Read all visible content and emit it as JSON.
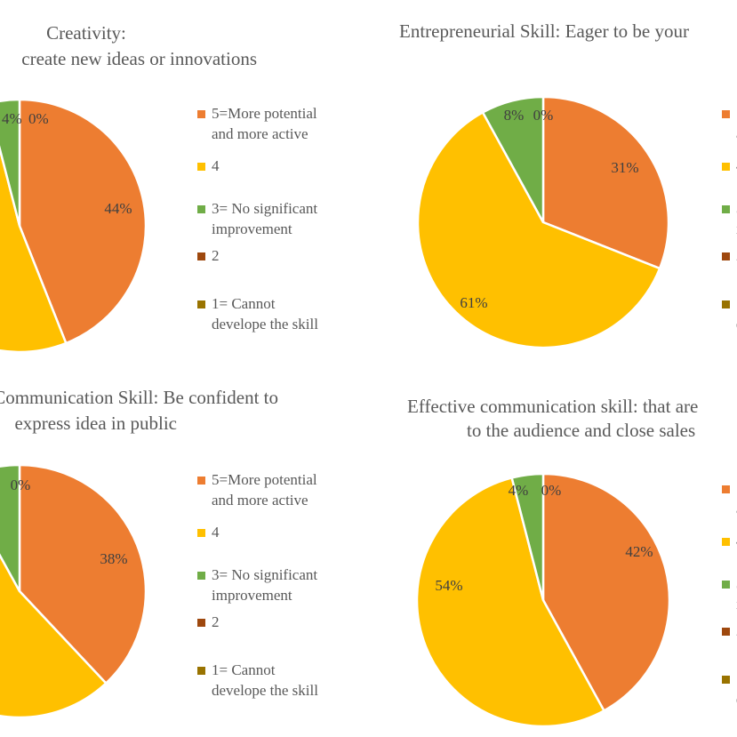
{
  "colors": {
    "5": "#ED7D31",
    "4": "#FFC000",
    "3": "#70AD47",
    "2": "#9E480E",
    "1": "#997300"
  },
  "legend_labels": [
    "5=More potential and more active",
    "4",
    "3= No significant improvement",
    "2",
    "1= Cannot develope the skill"
  ],
  "chart_data": [
    {
      "type": "pie",
      "title": [
        "Creativity:",
        "create new ideas or innovations"
      ],
      "categories": [
        "5=More potential and more active",
        "4",
        "3= No significant improvement",
        "2",
        "1= Cannot develope the skill"
      ],
      "values": [
        44,
        52,
        4,
        0,
        0
      ],
      "data_labels": [
        "44%",
        "",
        "4%",
        "0%",
        ""
      ],
      "legend": "right"
    },
    {
      "type": "pie",
      "title": [
        "Entrepreneurial Skill:  Eager to be your"
      ],
      "categories": [
        "5=More potential and more active",
        "4",
        "3= No significant improvement",
        "2",
        "1= Cannot develope the skill"
      ],
      "values": [
        31,
        61,
        8,
        0,
        0
      ],
      "data_labels": [
        "31%",
        "61%",
        "8%",
        "0%",
        ""
      ],
      "legend": "right"
    },
    {
      "type": "pie",
      "title": [
        "Communication  Skill:  Be confident to",
        "express idea in public"
      ],
      "categories": [
        "5=More potential and more active",
        "4",
        "3= No significant improvement",
        "2",
        "1= Cannot develope the skill"
      ],
      "values": [
        38,
        54,
        8,
        0,
        0
      ],
      "data_labels": [
        "38%",
        "",
        "",
        "0%",
        ""
      ],
      "legend": "right"
    },
    {
      "type": "pie",
      "title": [
        "Effective  communication  skill:  that are",
        "to the audience and close sales"
      ],
      "categories": [
        "5=More potential and more active",
        "4",
        "3= No significant improvement",
        "2",
        "1= Cannot develope the skill"
      ],
      "values": [
        42,
        54,
        4,
        0,
        0
      ],
      "data_labels": [
        "42%",
        "54%",
        "4%",
        "0%",
        ""
      ],
      "legend": "right"
    }
  ]
}
